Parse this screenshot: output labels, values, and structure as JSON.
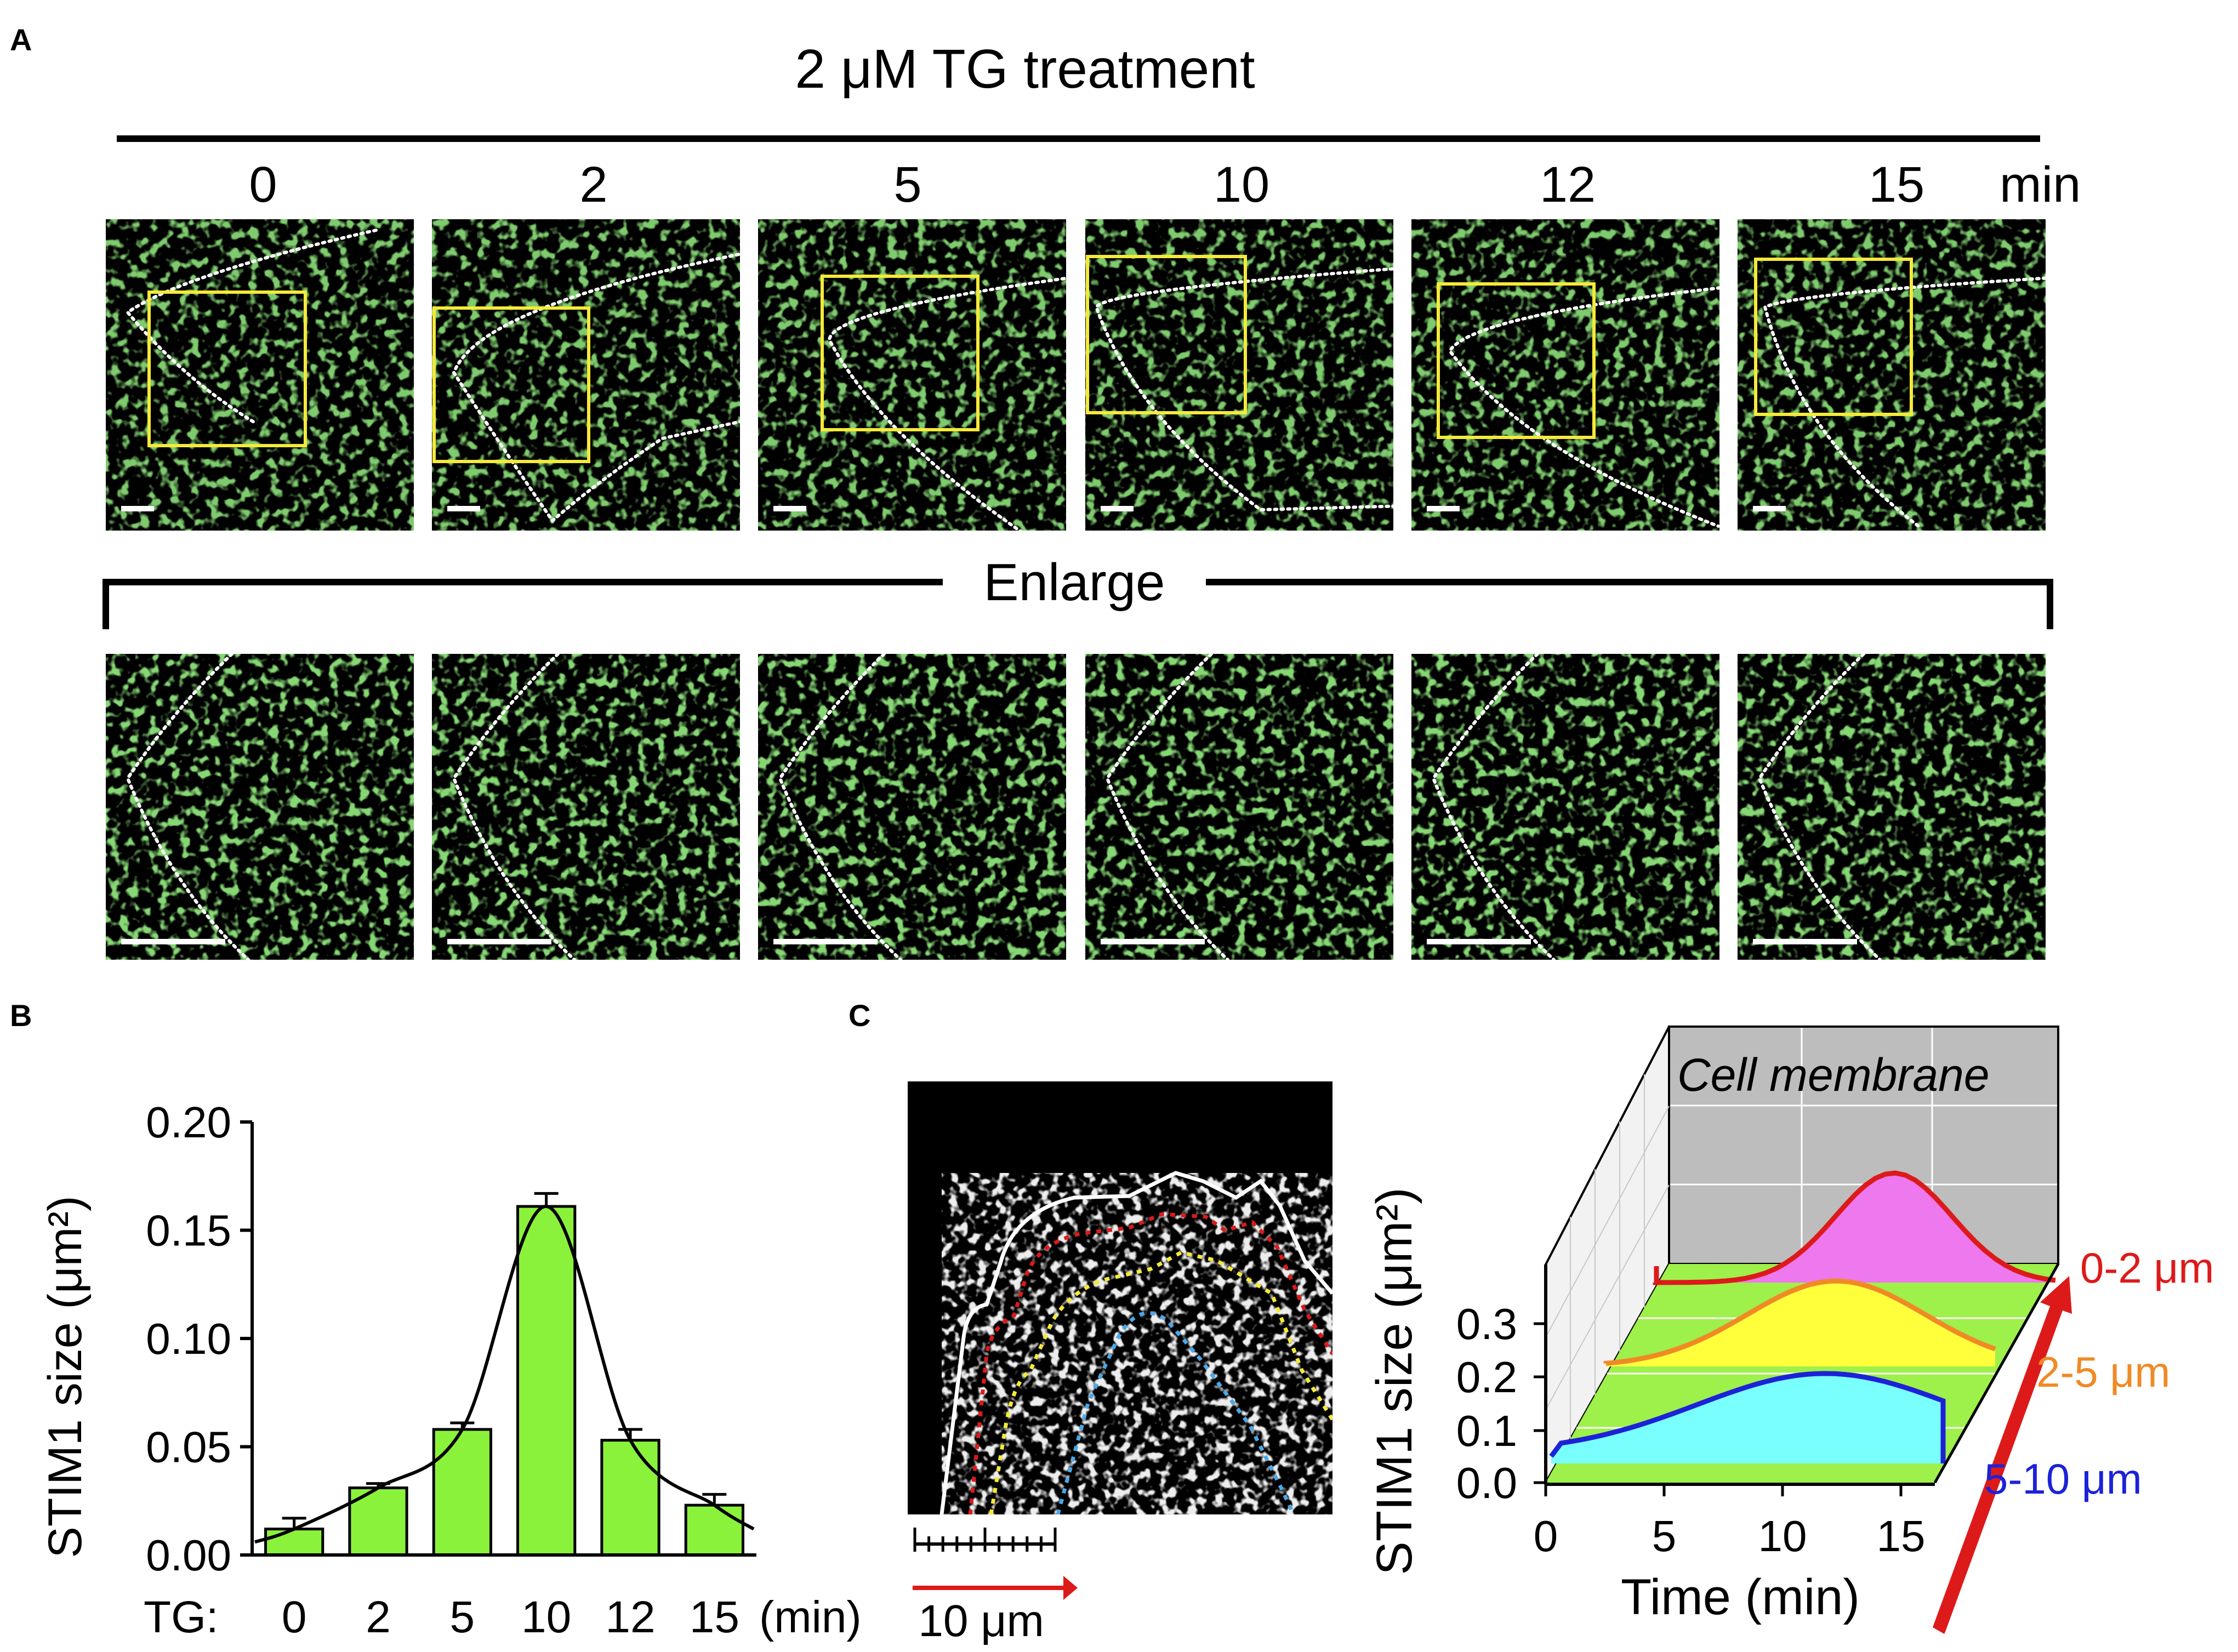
{
  "colors": {
    "bar_fill": "#8bf23c",
    "yellow_box": "#f5e93a",
    "micro_green": "#5fd13a",
    "red": "#dd1a1a",
    "orange": "#f08a25",
    "blue": "#1c22d8",
    "magenta_fill": "#ee78ee",
    "yellow_fill": "#ffff3c",
    "cyan_fill": "#7affff",
    "floor_green": "#9ef04a",
    "wall_gray": "#bdbdbd"
  },
  "panelA": {
    "label": "A",
    "title": "2 μM TG treatment",
    "times": [
      "0",
      "2",
      "5",
      "10",
      "12",
      "15"
    ],
    "time_unit": "min",
    "enlarge_label": "Enlarge"
  },
  "panelB": {
    "label": "B",
    "ylabel": "STIM1 size (μm²)",
    "xprefix": "TG:",
    "xunit": "(min)"
  },
  "panelC": {
    "label": "C",
    "scale_label": "10 μm",
    "wall_label": "Cell membrane",
    "ylabel": "STIM1 size (μm²)",
    "xlabel": "Time (min)",
    "x_ticks": [
      "0",
      "5",
      "10",
      "15"
    ],
    "y_ticks": [
      "0.0",
      "0.1",
      "0.2",
      "0.3"
    ],
    "bands": [
      {
        "name": "0-2 μm",
        "color": "#dd1a1a"
      },
      {
        "name": "2-5 μm",
        "color": "#f08a25"
      },
      {
        "name": "5-10 μm",
        "color": "#1c22d8"
      }
    ]
  },
  "chart_data": {
    "type": "bar",
    "categories": [
      "0",
      "2",
      "5",
      "10",
      "12",
      "15"
    ],
    "values": [
      0.012,
      0.031,
      0.058,
      0.161,
      0.053,
      0.023
    ],
    "errors": [
      0.005,
      0.002,
      0.003,
      0.006,
      0.005,
      0.005
    ],
    "ylim": [
      0,
      0.2
    ],
    "yticks": [
      "0.00",
      "0.05",
      "0.10",
      "0.15",
      "0.20"
    ],
    "title": "",
    "xlabel": "TG (min)",
    "ylabel": "STIM1 size (μm²)"
  }
}
